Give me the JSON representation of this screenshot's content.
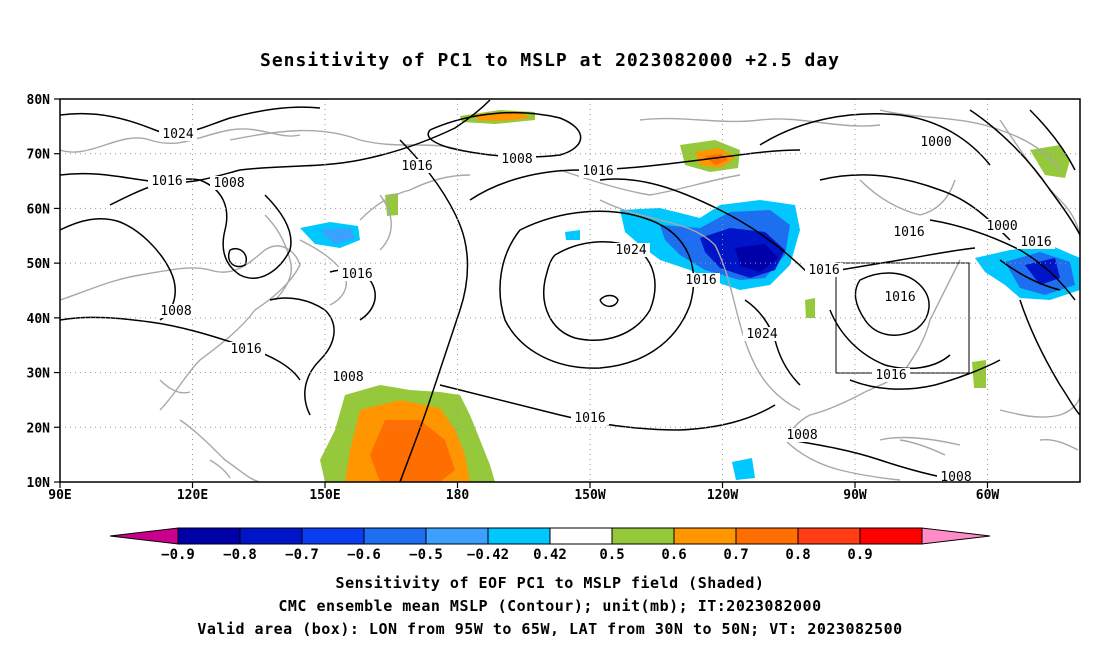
{
  "title": "Sensitivity of PC1 to MSLP at 2023082000 +2.5 day",
  "lat_labels": [
    "80N",
    "70N",
    "60N",
    "50N",
    "40N",
    "30N",
    "20N",
    "10N"
  ],
  "lon_labels": [
    "90E",
    "120E",
    "150E",
    "180",
    "150W",
    "120W",
    "90W",
    "60W"
  ],
  "contour_labels": [
    "1024",
    "1016",
    "1008",
    "1016",
    "1008",
    "1016",
    "1000",
    "1000",
    "1016",
    "1008",
    "1016",
    "1024",
    "1016",
    "1016",
    "1008",
    "1016",
    "1008",
    "1016",
    "1024",
    "1016",
    "1016",
    "1008",
    "1008",
    "1016"
  ],
  "colorbar": {
    "tick_labels": [
      "−0.9",
      "−0.8",
      "−0.7",
      "−0.6",
      "−0.5",
      "−0.42",
      "0.42",
      "0.5",
      "0.6",
      "0.7",
      "0.8",
      "0.9"
    ],
    "colors": [
      "#c8008c",
      "#0000a8",
      "#0014c8",
      "#0a3cf0",
      "#1e6ef0",
      "#3ca0ff",
      "#00c8ff",
      "#ffffff",
      "#96c83c",
      "#ff9600",
      "#ff6e00",
      "#ff3c14",
      "#ff0000",
      "#ff8cc8"
    ]
  },
  "captions": [
    "Sensitivity of EOF PC1 to MSLP field (Shaded)",
    "CMC ensemble mean MSLP (Contour); unit(mb); IT:2023082000",
    "Valid area (box): LON from 95W to 65W, LAT from 30N to 50N; VT: 2023082500"
  ]
}
